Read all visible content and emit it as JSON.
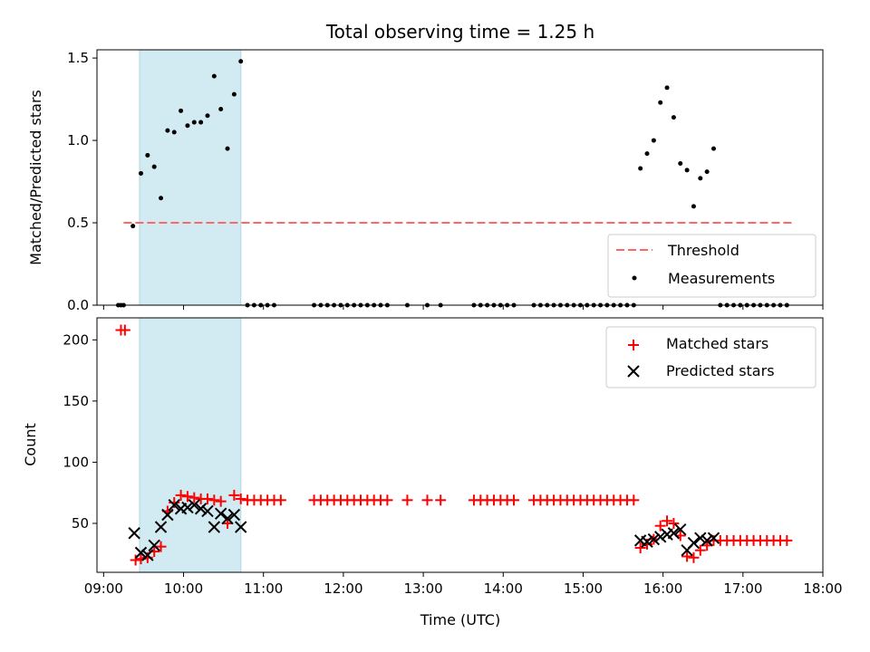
{
  "chart_data": [
    {
      "type": "scatter",
      "title": "Total observing time = 1.25 h",
      "ylabel": "Matched/Predicted stars",
      "xlim": [
        "08:55",
        "18:00"
      ],
      "ylim": [
        0,
        1.55
      ],
      "yticks": [
        "0.0",
        "0.5",
        "1.0",
        "1.5"
      ],
      "highlight_span": [
        "09:27",
        "10:43"
      ],
      "highlight_color": "#add8e6",
      "legend_position": "lower-right",
      "threshold": {
        "name": "Threshold",
        "y": 0.5,
        "x_range": [
          "09:15",
          "17:37"
        ],
        "color": "#ff6666"
      },
      "series": [
        {
          "name": "Measurements",
          "color": "#000000",
          "points": [
            [
              "09:11",
              0
            ],
            [
              "09:13",
              0
            ],
            [
              "09:15",
              0
            ],
            [
              "09:22",
              0.48
            ],
            [
              "09:28",
              0.8
            ],
            [
              "09:33",
              0.91
            ],
            [
              "09:38",
              0.84
            ],
            [
              "09:43",
              0.65
            ],
            [
              "09:48",
              1.06
            ],
            [
              "09:53",
              1.05
            ],
            [
              "09:58",
              1.18
            ],
            [
              "10:03",
              1.09
            ],
            [
              "10:08",
              1.11
            ],
            [
              "10:13",
              1.11
            ],
            [
              "10:18",
              1.15
            ],
            [
              "10:23",
              1.39
            ],
            [
              "10:28",
              1.19
            ],
            [
              "10:33",
              0.95
            ],
            [
              "10:38",
              1.28
            ],
            [
              "10:43",
              1.48
            ],
            [
              "10:48",
              0
            ],
            [
              "10:53",
              0
            ],
            [
              "10:58",
              0
            ],
            [
              "11:03",
              0
            ],
            [
              "11:08",
              0
            ],
            [
              "11:38",
              0
            ],
            [
              "11:43",
              0
            ],
            [
              "11:48",
              0
            ],
            [
              "11:53",
              0
            ],
            [
              "11:58",
              0
            ],
            [
              "12:03",
              0
            ],
            [
              "12:08",
              0
            ],
            [
              "12:13",
              0
            ],
            [
              "12:18",
              0
            ],
            [
              "12:23",
              0
            ],
            [
              "12:28",
              0
            ],
            [
              "12:33",
              0
            ],
            [
              "12:48",
              0
            ],
            [
              "13:03",
              0
            ],
            [
              "13:13",
              0
            ],
            [
              "13:38",
              0
            ],
            [
              "13:43",
              0
            ],
            [
              "13:48",
              0
            ],
            [
              "13:53",
              0
            ],
            [
              "13:58",
              0
            ],
            [
              "14:03",
              0
            ],
            [
              "14:08",
              0
            ],
            [
              "14:23",
              0
            ],
            [
              "14:28",
              0
            ],
            [
              "14:33",
              0
            ],
            [
              "14:38",
              0
            ],
            [
              "14:43",
              0
            ],
            [
              "14:48",
              0
            ],
            [
              "14:53",
              0
            ],
            [
              "14:58",
              0
            ],
            [
              "15:03",
              0
            ],
            [
              "15:08",
              0
            ],
            [
              "15:13",
              0
            ],
            [
              "15:18",
              0
            ],
            [
              "15:23",
              0
            ],
            [
              "15:28",
              0
            ],
            [
              "15:33",
              0
            ],
            [
              "15:38",
              0
            ],
            [
              "15:43",
              0.83
            ],
            [
              "15:48",
              0.92
            ],
            [
              "15:53",
              1.0
            ],
            [
              "15:58",
              1.23
            ],
            [
              "16:03",
              1.32
            ],
            [
              "16:08",
              1.14
            ],
            [
              "16:13",
              0.86
            ],
            [
              "16:18",
              0.82
            ],
            [
              "16:23",
              0.6
            ],
            [
              "16:28",
              0.77
            ],
            [
              "16:33",
              0.81
            ],
            [
              "16:38",
              0.95
            ],
            [
              "16:43",
              0
            ],
            [
              "16:48",
              0
            ],
            [
              "16:53",
              0
            ],
            [
              "16:58",
              0
            ],
            [
              "17:03",
              0
            ],
            [
              "17:08",
              0
            ],
            [
              "17:13",
              0
            ],
            [
              "17:18",
              0
            ],
            [
              "17:23",
              0
            ],
            [
              "17:28",
              0
            ],
            [
              "17:33",
              0
            ]
          ]
        }
      ]
    },
    {
      "type": "scatter",
      "xlabel": "Time (UTC)",
      "ylabel": "Count",
      "xlim": [
        "08:55",
        "18:00"
      ],
      "ylim": [
        10,
        218
      ],
      "xticks": [
        "09:00",
        "10:00",
        "11:00",
        "12:00",
        "13:00",
        "14:00",
        "15:00",
        "16:00",
        "17:00",
        "18:00"
      ],
      "yticks": [
        "50",
        "100",
        "150",
        "200"
      ],
      "highlight_span": [
        "09:27",
        "10:43"
      ],
      "highlight_color": "#add8e6",
      "legend_position": "top-right",
      "series": [
        {
          "name": "Matched stars",
          "marker": "plus",
          "color": "#ff0000",
          "points": [
            [
              "09:13",
              208
            ],
            [
              "09:16",
              208
            ],
            [
              "09:24",
              20
            ],
            [
              "09:28",
              21
            ],
            [
              "09:33",
              22
            ],
            [
              "09:38",
              27
            ],
            [
              "09:43",
              31
            ],
            [
              "09:48",
              60
            ],
            [
              "09:53",
              67
            ],
            [
              "09:58",
              73
            ],
            [
              "10:03",
              72
            ],
            [
              "10:08",
              71
            ],
            [
              "10:13",
              70
            ],
            [
              "10:18",
              70
            ],
            [
              "10:23",
              69
            ],
            [
              "10:28",
              68
            ],
            [
              "10:33",
              50
            ],
            [
              "10:38",
              73
            ],
            [
              "10:43",
              70
            ],
            [
              "10:48",
              69
            ],
            [
              "10:53",
              69
            ],
            [
              "10:58",
              69
            ],
            [
              "11:03",
              69
            ],
            [
              "11:08",
              69
            ],
            [
              "11:13",
              69
            ],
            [
              "11:38",
              69
            ],
            [
              "11:43",
              69
            ],
            [
              "11:48",
              69
            ],
            [
              "11:53",
              69
            ],
            [
              "11:58",
              69
            ],
            [
              "12:03",
              69
            ],
            [
              "12:08",
              69
            ],
            [
              "12:13",
              69
            ],
            [
              "12:18",
              69
            ],
            [
              "12:23",
              69
            ],
            [
              "12:28",
              69
            ],
            [
              "12:33",
              69
            ],
            [
              "12:48",
              69
            ],
            [
              "13:03",
              69
            ],
            [
              "13:13",
              69
            ],
            [
              "13:38",
              69
            ],
            [
              "13:43",
              69
            ],
            [
              "13:48",
              69
            ],
            [
              "13:53",
              69
            ],
            [
              "13:58",
              69
            ],
            [
              "14:03",
              69
            ],
            [
              "14:08",
              69
            ],
            [
              "14:23",
              69
            ],
            [
              "14:28",
              69
            ],
            [
              "14:33",
              69
            ],
            [
              "14:38",
              69
            ],
            [
              "14:43",
              69
            ],
            [
              "14:48",
              69
            ],
            [
              "14:53",
              69
            ],
            [
              "14:58",
              69
            ],
            [
              "15:03",
              69
            ],
            [
              "15:08",
              69
            ],
            [
              "15:13",
              69
            ],
            [
              "15:18",
              69
            ],
            [
              "15:23",
              69
            ],
            [
              "15:28",
              69
            ],
            [
              "15:33",
              69
            ],
            [
              "15:38",
              69
            ],
            [
              "15:43",
              30
            ],
            [
              "15:48",
              33
            ],
            [
              "15:53",
              37
            ],
            [
              "15:58",
              48
            ],
            [
              "16:03",
              52
            ],
            [
              "16:08",
              50
            ],
            [
              "16:13",
              40
            ],
            [
              "16:18",
              23
            ],
            [
              "16:23",
              22
            ],
            [
              "16:28",
              28
            ],
            [
              "16:33",
              32
            ],
            [
              "16:38",
              36
            ],
            [
              "16:43",
              36
            ],
            [
              "16:48",
              36
            ],
            [
              "16:53",
              36
            ],
            [
              "16:58",
              36
            ],
            [
              "17:03",
              36
            ],
            [
              "17:08",
              36
            ],
            [
              "17:13",
              36
            ],
            [
              "17:18",
              36
            ],
            [
              "17:23",
              36
            ],
            [
              "17:28",
              36
            ],
            [
              "17:33",
              36
            ]
          ]
        },
        {
          "name": "Predicted stars",
          "marker": "x",
          "color": "#000000",
          "points": [
            [
              "09:23",
              42
            ],
            [
              "09:28",
              26
            ],
            [
              "09:33",
              24
            ],
            [
              "09:38",
              32
            ],
            [
              "09:43",
              47
            ],
            [
              "09:48",
              57
            ],
            [
              "09:53",
              65
            ],
            [
              "09:58",
              62
            ],
            [
              "10:03",
              63
            ],
            [
              "10:08",
              65
            ],
            [
              "10:13",
              62
            ],
            [
              "10:18",
              60
            ],
            [
              "10:23",
              47
            ],
            [
              "10:28",
              58
            ],
            [
              "10:33",
              54
            ],
            [
              "10:38",
              57
            ],
            [
              "10:43",
              47
            ],
            [
              "15:43",
              36
            ],
            [
              "15:48",
              35
            ],
            [
              "15:53",
              37
            ],
            [
              "15:58",
              39
            ],
            [
              "16:03",
              41
            ],
            [
              "16:08",
              42
            ],
            [
              "16:13",
              45
            ],
            [
              "16:18",
              28
            ],
            [
              "16:23",
              34
            ],
            [
              "16:28",
              38
            ],
            [
              "16:33",
              36
            ],
            [
              "16:38",
              38
            ]
          ]
        }
      ]
    }
  ]
}
